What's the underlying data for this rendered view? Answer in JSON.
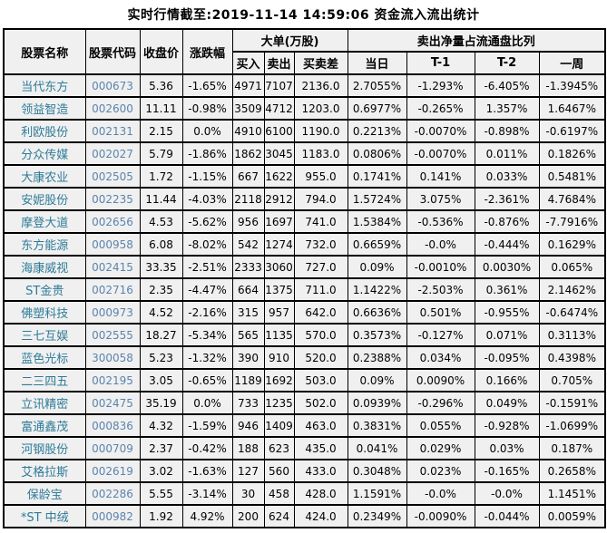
{
  "title": "实时行情截至:2019-11-14 14:59:06 资金流入流出统计",
  "colors": {
    "name_text": "#2e7b98",
    "code_text": "#5b84ad",
    "cell_background": "#f0f0f0",
    "border": "#000000",
    "title_text": "#000000"
  },
  "table": {
    "columns": {
      "name": "股票名称",
      "code": "股票代码",
      "close": "收盘价",
      "change": "涨跌幅",
      "large_order_group": "大单(万股)",
      "buy": "买入",
      "sell": "卖出",
      "diff": "买卖差",
      "net_sell_group": "卖出净量占流通盘比列",
      "day": "当日",
      "t1": "T-1",
      "t2": "T-2",
      "week": "一周"
    },
    "rows": [
      {
        "name": "当代东方",
        "code": "000673",
        "close": "5.36",
        "change": "-1.65%",
        "buy": "4971",
        "sell": "7107",
        "diff": "2136.0",
        "day": "2.7055%",
        "t1": "-1.293%",
        "t2": "-6.405%",
        "week": "-1.3945%"
      },
      {
        "name": "领益智造",
        "code": "002600",
        "close": "11.11",
        "change": "-0.98%",
        "buy": "3509",
        "sell": "4712",
        "diff": "1203.0",
        "day": "0.6977%",
        "t1": "-0.265%",
        "t2": "1.357%",
        "week": "1.6467%"
      },
      {
        "name": "利欧股份",
        "code": "002131",
        "close": "2.15",
        "change": "0.0%",
        "buy": "4910",
        "sell": "6100",
        "diff": "1190.0",
        "day": "0.2213%",
        "t1": "-0.0070%",
        "t2": "-0.898%",
        "week": "-0.6197%"
      },
      {
        "name": "分众传媒",
        "code": "002027",
        "close": "5.79",
        "change": "-1.86%",
        "buy": "1862",
        "sell": "3045",
        "diff": "1183.0",
        "day": "0.0806%",
        "t1": "-0.0070%",
        "t2": "0.011%",
        "week": "0.1826%"
      },
      {
        "name": "大康农业",
        "code": "002505",
        "close": "1.72",
        "change": "-1.15%",
        "buy": "667",
        "sell": "1622",
        "diff": "955.0",
        "day": "0.1741%",
        "t1": "0.141%",
        "t2": "0.033%",
        "week": "0.5481%"
      },
      {
        "name": "安妮股份",
        "code": "002235",
        "close": "11.44",
        "change": "-4.03%",
        "buy": "2118",
        "sell": "2912",
        "diff": "794.0",
        "day": "1.5724%",
        "t1": "3.075%",
        "t2": "-2.361%",
        "week": "4.7684%"
      },
      {
        "name": "摩登大道",
        "code": "002656",
        "close": "4.53",
        "change": "-5.62%",
        "buy": "956",
        "sell": "1697",
        "diff": "741.0",
        "day": "1.5384%",
        "t1": "-0.536%",
        "t2": "-0.876%",
        "week": "-7.7916%"
      },
      {
        "name": "东方能源",
        "code": "000958",
        "close": "6.08",
        "change": "-8.02%",
        "buy": "542",
        "sell": "1274",
        "diff": "732.0",
        "day": "0.6659%",
        "t1": "-0.0%",
        "t2": "-0.444%",
        "week": "0.1629%"
      },
      {
        "name": "海康威视",
        "code": "002415",
        "close": "33.35",
        "change": "-2.51%",
        "buy": "2333",
        "sell": "3060",
        "diff": "727.0",
        "day": "0.09%",
        "t1": "-0.0010%",
        "t2": "0.0030%",
        "week": "0.065%"
      },
      {
        "name": "ST金贵",
        "code": "002716",
        "close": "2.35",
        "change": "-4.47%",
        "buy": "664",
        "sell": "1375",
        "diff": "711.0",
        "day": "1.1422%",
        "t1": "-2.503%",
        "t2": "0.361%",
        "week": "2.1462%"
      },
      {
        "name": "佛塑科技",
        "code": "000973",
        "close": "4.52",
        "change": "-2.16%",
        "buy": "315",
        "sell": "957",
        "diff": "642.0",
        "day": "0.6636%",
        "t1": "0.501%",
        "t2": "-0.955%",
        "week": "-0.6474%"
      },
      {
        "name": "三七互娱",
        "code": "002555",
        "close": "18.27",
        "change": "-5.34%",
        "buy": "565",
        "sell": "1135",
        "diff": "570.0",
        "day": "0.3573%",
        "t1": "-0.127%",
        "t2": "0.071%",
        "week": "0.3113%"
      },
      {
        "name": "蓝色光标",
        "code": "300058",
        "close": "5.23",
        "change": "-1.32%",
        "buy": "390",
        "sell": "910",
        "diff": "520.0",
        "day": "0.2388%",
        "t1": "0.034%",
        "t2": "-0.095%",
        "week": "0.4398%"
      },
      {
        "name": "二三四五",
        "code": "002195",
        "close": "3.05",
        "change": "-0.65%",
        "buy": "1189",
        "sell": "1692",
        "diff": "503.0",
        "day": "0.09%",
        "t1": "0.0090%",
        "t2": "0.166%",
        "week": "0.705%"
      },
      {
        "name": "立讯精密",
        "code": "002475",
        "close": "35.19",
        "change": "0.0%",
        "buy": "733",
        "sell": "1235",
        "diff": "502.0",
        "day": "0.0939%",
        "t1": "-0.296%",
        "t2": "0.049%",
        "week": "-0.1591%"
      },
      {
        "name": "富通鑫茂",
        "code": "000836",
        "close": "4.32",
        "change": "-1.59%",
        "buy": "946",
        "sell": "1409",
        "diff": "463.0",
        "day": "0.3831%",
        "t1": "0.055%",
        "t2": "-0.928%",
        "week": "-1.0699%"
      },
      {
        "name": "河钢股份",
        "code": "000709",
        "close": "2.37",
        "change": "-0.42%",
        "buy": "188",
        "sell": "623",
        "diff": "435.0",
        "day": "0.041%",
        "t1": "0.029%",
        "t2": "0.03%",
        "week": "0.187%"
      },
      {
        "name": "艾格拉斯",
        "code": "002619",
        "close": "3.02",
        "change": "-1.63%",
        "buy": "127",
        "sell": "560",
        "diff": "433.0",
        "day": "0.3048%",
        "t1": "0.023%",
        "t2": "-0.165%",
        "week": "0.2658%"
      },
      {
        "name": "保龄宝",
        "code": "002286",
        "close": "5.55",
        "change": "-3.14%",
        "buy": "30",
        "sell": "458",
        "diff": "428.0",
        "day": "1.1591%",
        "t1": "-0.0%",
        "t2": "-0.0%",
        "week": "1.1451%"
      },
      {
        "name": "*ST 中绒",
        "code": "000982",
        "close": "1.92",
        "change": "4.92%",
        "buy": "200",
        "sell": "624",
        "diff": "424.0",
        "day": "0.2349%",
        "t1": "-0.0090%",
        "t2": "-0.044%",
        "week": "0.0059%"
      }
    ]
  }
}
